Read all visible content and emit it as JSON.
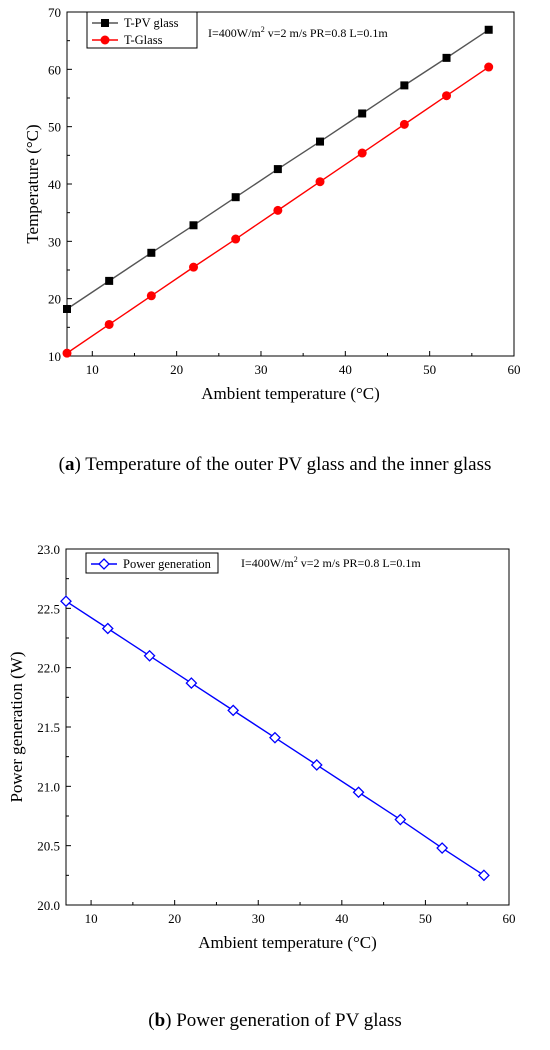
{
  "chart_data": [
    {
      "type": "line",
      "xlabel": "Ambient temperature (°C)",
      "ylabel": "Temperature (°C)",
      "xlim": [
        7,
        60
      ],
      "ylim": [
        10,
        70
      ],
      "xticks": [
        "10",
        "20",
        "30",
        "40",
        "50",
        "60"
      ],
      "yticks": [
        "10",
        "20",
        "30",
        "40",
        "50",
        "60",
        "70"
      ],
      "annotation": "I=400W/m² v=2 m/s PR=0.8 L=0.1m",
      "legend_position": "top-left",
      "x": [
        7,
        12,
        17,
        22,
        27,
        32,
        37,
        42,
        47,
        52,
        57
      ],
      "series": [
        {
          "name": "T-PV glass",
          "marker": "square",
          "color": "#000000",
          "line_color": "#555555",
          "values": [
            18.2,
            23.1,
            28.0,
            32.8,
            37.7,
            42.6,
            47.4,
            52.3,
            57.2,
            62.0,
            66.9
          ]
        },
        {
          "name": "T-Glass",
          "marker": "circle",
          "color": "#ff0000",
          "line_color": "#ff0000",
          "values": [
            10.5,
            15.5,
            20.5,
            25.5,
            30.4,
            35.4,
            40.4,
            45.4,
            50.4,
            55.4,
            60.4
          ]
        }
      ]
    },
    {
      "type": "line",
      "xlabel": "Ambient temperature (°C)",
      "ylabel": "Power generation (W)",
      "xlim": [
        7,
        60
      ],
      "ylim": [
        20.0,
        23.0
      ],
      "xticks": [
        "10",
        "20",
        "30",
        "40",
        "50",
        "60"
      ],
      "yticks": [
        "20.0",
        "20.5",
        "21.0",
        "21.5",
        "22.0",
        "22.5",
        "23.0"
      ],
      "annotation": "I=400W/m² v=2 m/s PR=0.8 L=0.1m",
      "legend_position": "top-left",
      "x": [
        7,
        12,
        17,
        22,
        27,
        32,
        37,
        42,
        47,
        52,
        57
      ],
      "series": [
        {
          "name": "Power generation",
          "marker": "diamond",
          "color": "#0000ff",
          "line_color": "#0000ff",
          "values": [
            22.56,
            22.33,
            22.1,
            21.87,
            21.64,
            21.41,
            21.18,
            20.95,
            20.72,
            20.48,
            20.25
          ]
        }
      ]
    }
  ],
  "captions": [
    {
      "label": "a",
      "text": " Temperature of the outer PV glass and the inner glass"
    },
    {
      "label": "b",
      "text": " Power generation of PV glass"
    }
  ]
}
